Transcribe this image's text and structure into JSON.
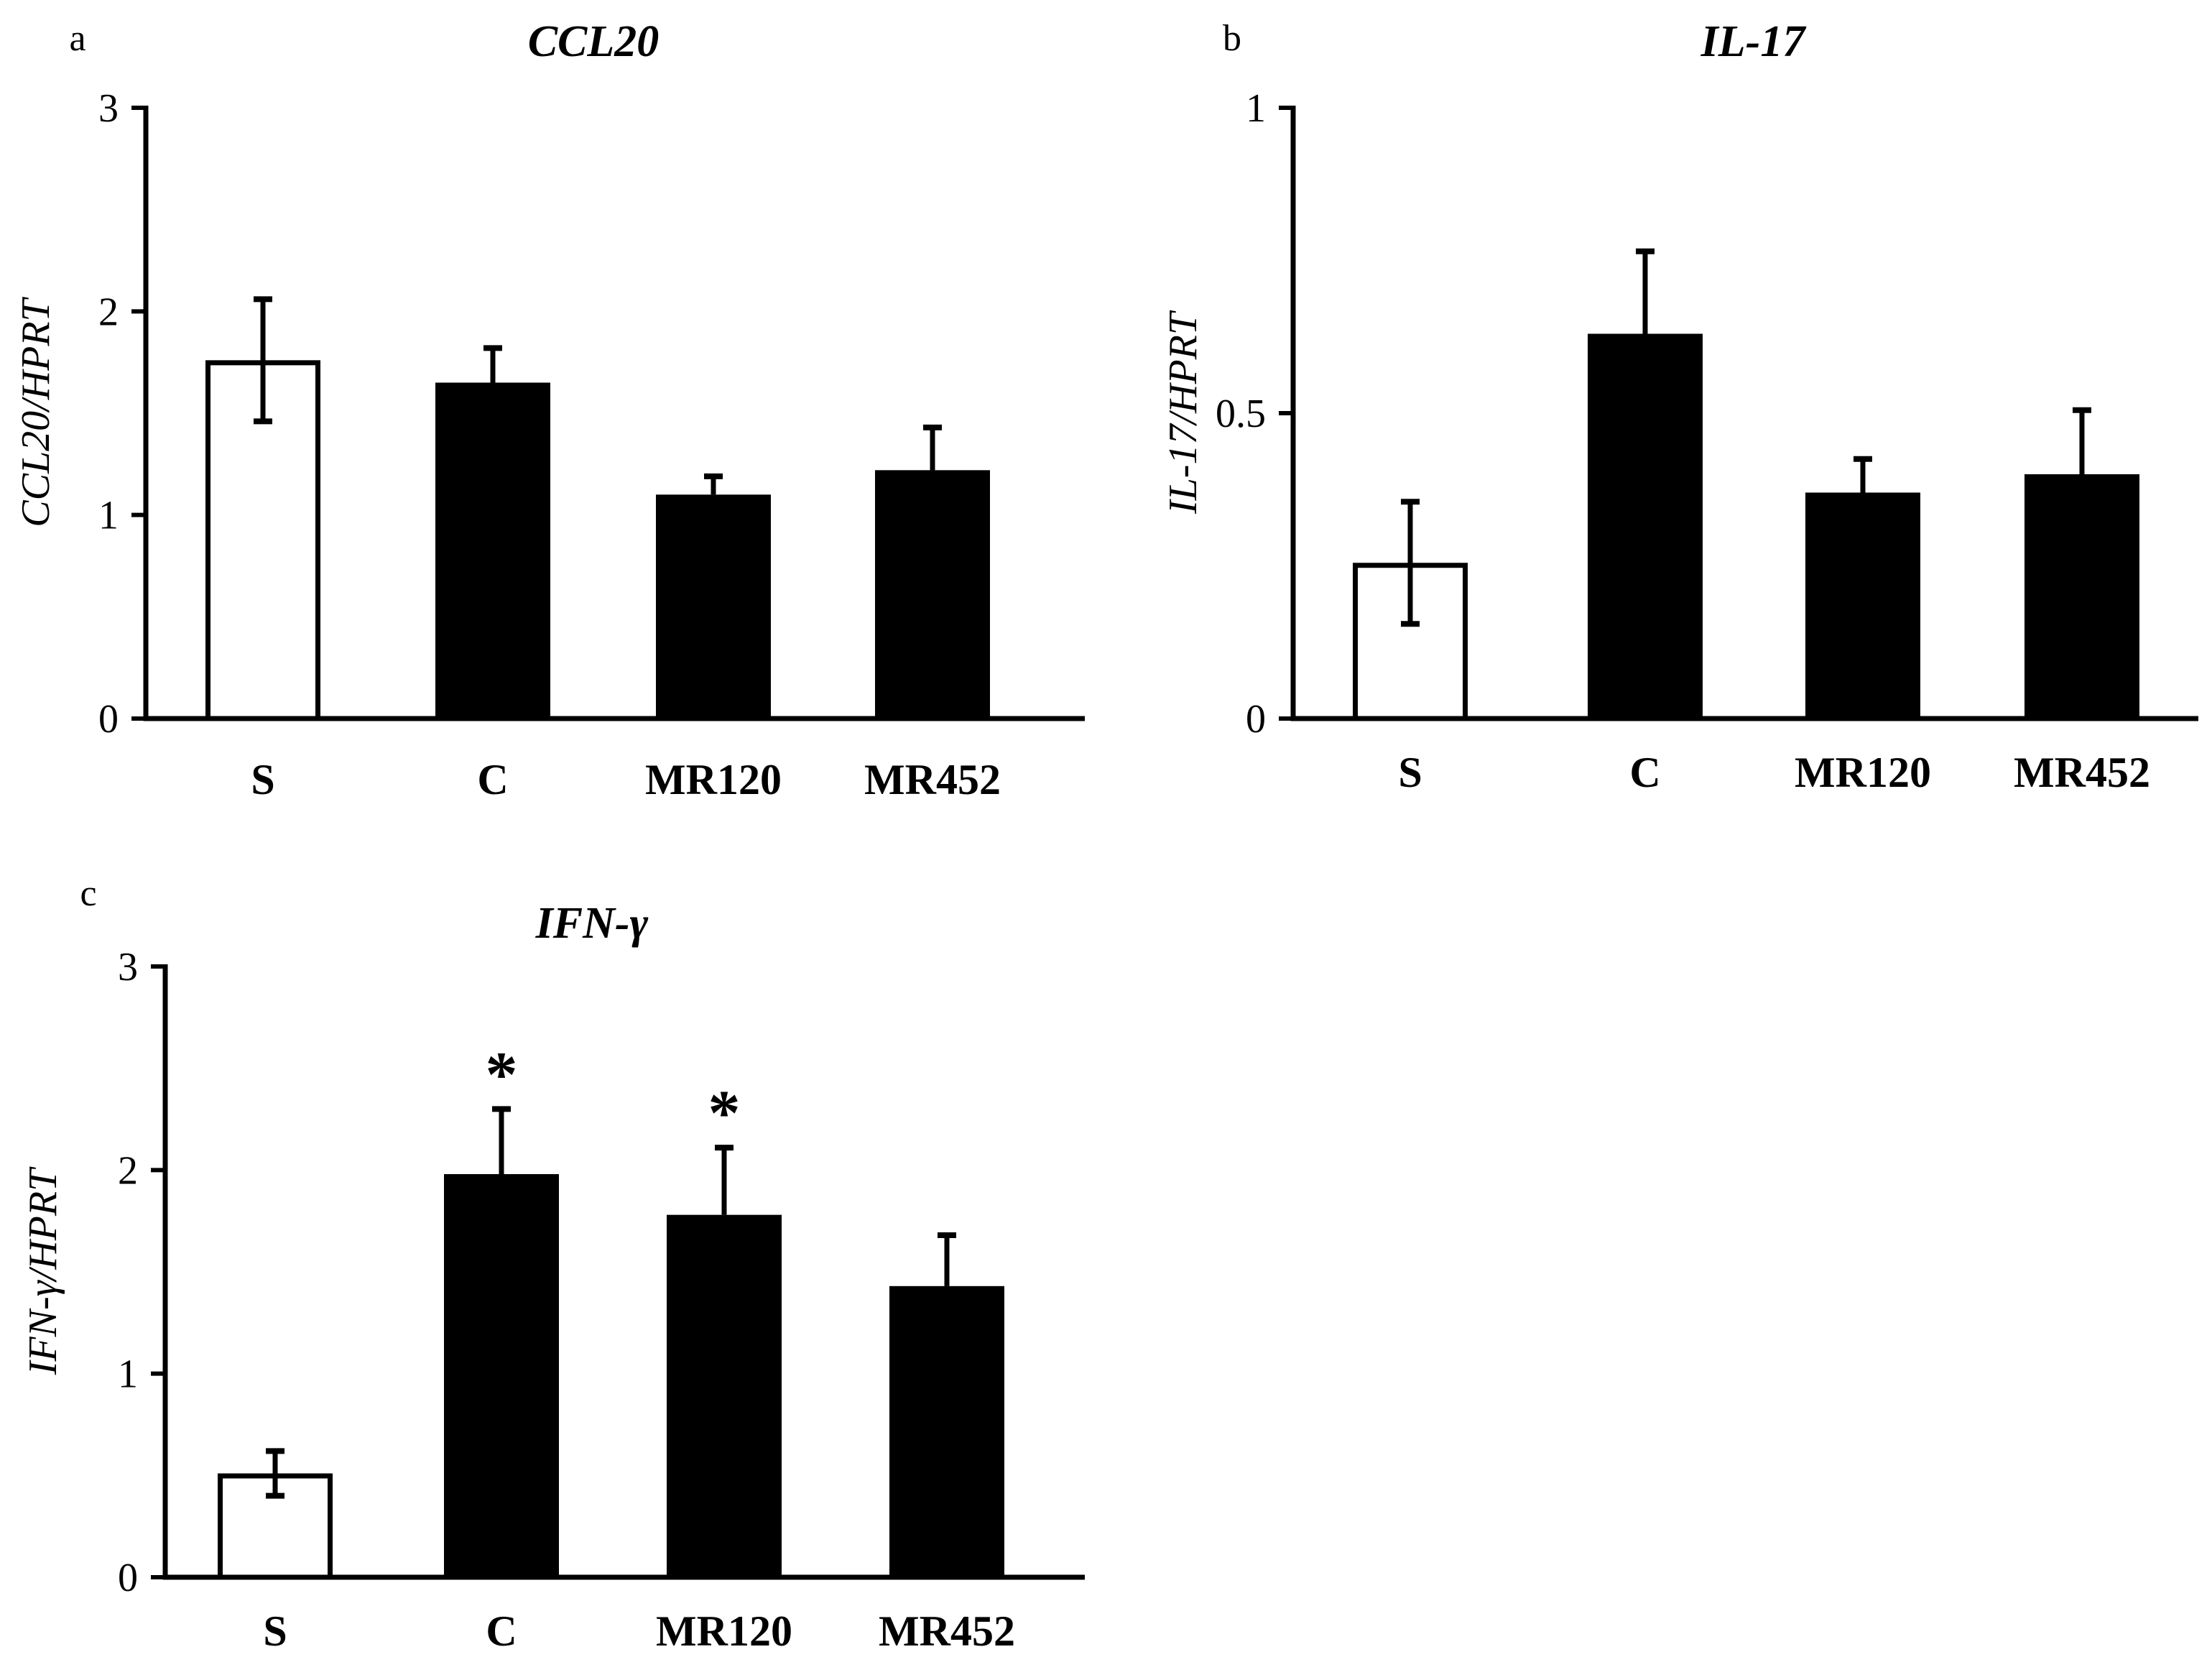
{
  "chart_data": [
    {
      "type": "bar",
      "panel": "a",
      "title": "CCL20",
      "ylabel": "CCL20/HPRT",
      "xlabel": "",
      "categories": [
        "S",
        "C",
        "MR120",
        "MR452"
      ],
      "values": [
        1.76,
        1.65,
        1.1,
        1.22
      ],
      "errors": [
        0.3,
        0.17,
        0.09,
        0.21
      ],
      "fills": [
        "#ffffff",
        "#000000",
        "#000000",
        "#000000"
      ],
      "significance": [
        "",
        "",
        "",
        ""
      ],
      "ylim": [
        0,
        3
      ],
      "yticks": [
        0,
        1,
        2,
        3
      ],
      "ytick_labels": [
        "0",
        "1",
        "2",
        "3"
      ]
    },
    {
      "type": "bar",
      "panel": "b",
      "title": "IL-17",
      "ylabel": "IL-17/HPRT",
      "xlabel": "",
      "categories": [
        "S",
        "C",
        "MR120",
        "MR452"
      ],
      "values": [
        0.255,
        0.63,
        0.37,
        0.4
      ],
      "errors": [
        0.1,
        0.135,
        0.055,
        0.105
      ],
      "fills": [
        "#ffffff",
        "#000000",
        "#000000",
        "#000000"
      ],
      "significance": [
        "",
        "",
        "",
        ""
      ],
      "ylim": [
        0,
        1
      ],
      "yticks": [
        0,
        0.5,
        1
      ],
      "ytick_labels": [
        "0",
        "0.5",
        "1"
      ]
    },
    {
      "type": "bar",
      "panel": "c",
      "title": "IFN-γ",
      "ylabel": "IFN-γ/HPRT",
      "xlabel": "",
      "categories": [
        "S",
        "C",
        "MR120",
        "MR452"
      ],
      "values": [
        0.51,
        1.98,
        1.78,
        1.43
      ],
      "errors": [
        0.11,
        0.32,
        0.33,
        0.25
      ],
      "fills": [
        "#ffffff",
        "#000000",
        "#000000",
        "#000000"
      ],
      "significance": [
        "",
        "*",
        "*",
        ""
      ],
      "ylim": [
        0,
        3
      ],
      "yticks": [
        0,
        1,
        2,
        3
      ],
      "ytick_labels": [
        "0",
        "1",
        "2",
        "3"
      ]
    }
  ]
}
